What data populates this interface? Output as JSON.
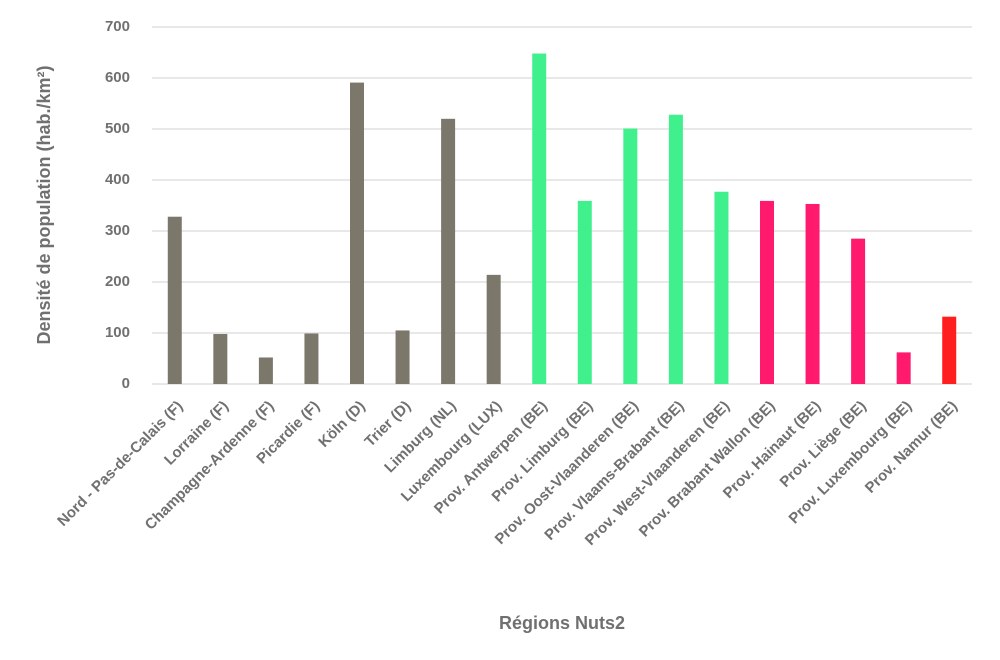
{
  "chart_data": {
    "type": "bar",
    "xlabel": "Régions Nuts2",
    "ylabel": "Densité de population (hab./km²)",
    "categories": [
      "Nord - Pas-de-Calais (F)",
      "Lorraine (F)",
      "Champagne-Ardenne (F)",
      "Picardie (F)",
      "Köln (D)",
      "Trier (D)",
      "Limburg (NL)",
      "Luxembourg (LUX)",
      "Prov. Antwerpen (BE)",
      "Prov. Limburg (BE)",
      "Prov. Oost-Vlaanderen (BE)",
      "Prov. Vlaams-Brabant (BE)",
      "Prov. West-Vlaanderen (BE)",
      "Prov. Brabant Wallon (BE)",
      "Prov. Hainaut (BE)",
      "Prov. Liège (BE)",
      "Prov. Luxembourg (BE)",
      "Prov. Namur (BE)"
    ],
    "values": [
      328,
      98,
      52,
      99,
      591,
      105,
      520,
      214,
      648,
      359,
      501,
      528,
      377,
      359,
      353,
      285,
      62,
      132
    ],
    "colors": [
      "#7b776b",
      "#7b776b",
      "#7b776b",
      "#7b776b",
      "#7b776b",
      "#7b776b",
      "#7b776b",
      "#7b776b",
      "#3ff08c",
      "#3ff08c",
      "#3ff08c",
      "#3ff08c",
      "#3ff08c",
      "#ff1a6e",
      "#ff1a6e",
      "#ff1a6e",
      "#ff1a6e",
      "#ff1f1f"
    ],
    "ylim": [
      0,
      700
    ],
    "yticks": [
      0,
      100,
      200,
      300,
      400,
      500,
      600,
      700
    ],
    "grid": true
  }
}
